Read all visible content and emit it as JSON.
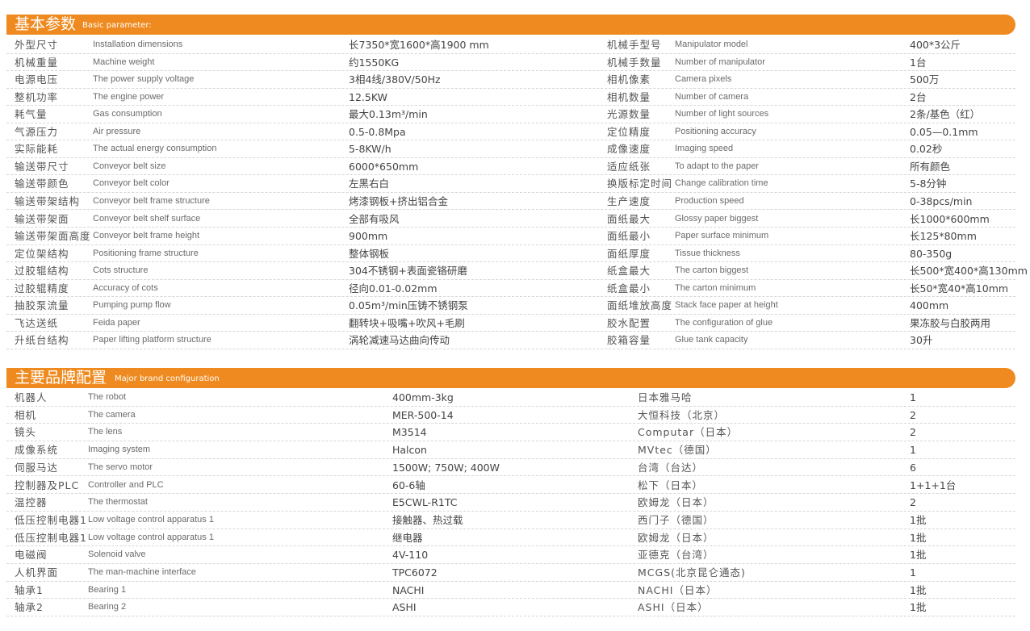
{
  "colors": {
    "accent": "#ee8a1f"
  },
  "basic": {
    "title_cn": "基本参数",
    "title_en": "Basic parameter:",
    "left": [
      [
        "外型尺寸",
        "Installation dimensions",
        "长7350*宽1600*高1900 mm"
      ],
      [
        "机械重量",
        "Machine weight",
        "约1550KG"
      ],
      [
        "电源电压",
        "The power supply voltage",
        "3相4线/380V/50Hz"
      ],
      [
        "整机功率",
        "The engine power",
        "12.5KW"
      ],
      [
        "耗气量",
        "Gas consumption",
        "最大0.13m³/min"
      ],
      [
        "气源压力",
        "Air pressure",
        "0.5-0.8Mpa"
      ],
      [
        "实际能耗",
        "The actual energy consumption",
        "5-8KW/h"
      ],
      [
        "输送带尺寸",
        "Conveyor belt size",
        "6000*650mm"
      ],
      [
        "输送带颜色",
        "Conveyor belt color",
        "左黑右白"
      ],
      [
        "输送带架结构",
        "Conveyor belt frame structure",
        "烤漆钢板+挤出铝合金"
      ],
      [
        "输送带架面",
        "Conveyor belt shelf surface",
        "全部有吸风"
      ],
      [
        "输送带架面高度",
        "Conveyor belt frame height",
        "900mm"
      ],
      [
        "定位架结构",
        "Positioning frame structure",
        "整体钢板"
      ],
      [
        "过胶辊结构",
        "Cots structure",
        "304不锈钢+表面瓷铬研磨"
      ],
      [
        "过胶辊精度",
        "Accuracy of cots",
        "径向0.01-0.02mm"
      ],
      [
        "抽胶泵流量",
        "Pumping pump flow",
        "0.05m³/min压铸不锈钢泵"
      ],
      [
        "飞达送纸",
        "Feida paper",
        "翻转块+吸嘴+吹风+毛刷"
      ],
      [
        "升纸台结构",
        "Paper lifting platform structure",
        "涡轮减速马达曲向传动"
      ]
    ],
    "right": [
      [
        "机械手型号",
        "Manipulator model",
        "400*3公斤"
      ],
      [
        "机械手数量",
        "Number of manipulator",
        "1台"
      ],
      [
        "相机像素",
        "Camera pixels",
        "500万"
      ],
      [
        "相机数量",
        "Number of camera",
        "2台"
      ],
      [
        "光源数量",
        "Number of light sources",
        "2条/基色（红）"
      ],
      [
        "定位精度",
        "Positioning accuracy",
        "0.05—0.1mm"
      ],
      [
        "成像速度",
        "Imaging speed",
        "0.02秒"
      ],
      [
        "适应纸张",
        "To adapt to the paper",
        "所有颜色"
      ],
      [
        "换版标定时间",
        "Change calibration time",
        "5-8分钟"
      ],
      [
        "生产速度",
        "Production speed",
        "0-38pcs/min"
      ],
      [
        "面纸最大",
        "Glossy paper biggest",
        "长1000*600mm"
      ],
      [
        "面纸最小",
        "Paper surface minimum",
        "长125*80mm"
      ],
      [
        "面纸厚度",
        "Tissue thickness",
        "80-350g"
      ],
      [
        "纸盒最大",
        "The carton biggest",
        "长500*宽400*高130mm"
      ],
      [
        "纸盒最小",
        "The carton minimum",
        "长50*宽40*高10mm"
      ],
      [
        "面纸堆放高度",
        "Stack face paper at height",
        "400mm"
      ],
      [
        "胶水配置",
        "The configuration of glue",
        "果冻胶与白胶两用"
      ],
      [
        "胶箱容量",
        "Glue tank capacity",
        "30升"
      ]
    ]
  },
  "brand": {
    "title_cn": "主要品牌配置",
    "title_en": "Major brand configuration",
    "rows": [
      [
        "机器人",
        "The robot",
        "400mm-3kg",
        "日本雅马哈",
        "1"
      ],
      [
        "相机",
        "The camera",
        "MER-500-14",
        "大恒科技（北京）",
        "2"
      ],
      [
        "镜头",
        "The lens",
        "M3514",
        "Computar（日本）",
        "2"
      ],
      [
        "成像系统",
        "Imaging system",
        "Halcon",
        "MVtec（德国）",
        "1"
      ],
      [
        "伺服马达",
        "The servo motor",
        "1500W; 750W; 400W",
        "台湾（台达）",
        "6"
      ],
      [
        "控制器及PLC",
        "Controller and PLC",
        "60-6轴",
        "松下（日本）",
        "1+1+1台"
      ],
      [
        "温控器",
        "The thermostat",
        "E5CWL-R1TC",
        "欧姆龙（日本）",
        "2"
      ],
      [
        "低压控制电器1",
        "Low voltage control apparatus 1",
        "接触器、热过载",
        "西门子（德国）",
        "1批"
      ],
      [
        "低压控制电器1",
        "Low voltage control apparatus 1",
        "继电器",
        "欧姆龙（日本）",
        "1批"
      ],
      [
        "电磁阀",
        "Solenoid valve",
        "4V-110",
        "亚德克（台湾）",
        "1批"
      ],
      [
        "人机界面",
        "The man-machine interface",
        "TPC6072",
        "MCGS(北京昆仑通态)",
        "1"
      ],
      [
        "轴承1",
        "Bearing 1",
        "NACHI",
        "NACHI（日本）",
        "1批"
      ],
      [
        "轴承2",
        "Bearing 2",
        "ASHI",
        "ASHI（日本）",
        "1批"
      ]
    ]
  }
}
